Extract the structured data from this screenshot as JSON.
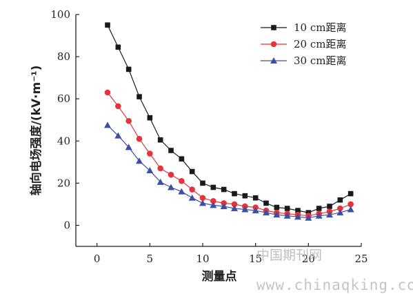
{
  "chart_data": {
    "type": "line",
    "title": "",
    "xlabel": "测量点",
    "ylabel": "轴向电场强度/(kV·m⁻¹)",
    "xlim": [
      -2,
      25
    ],
    "ylim": [
      -10,
      100
    ],
    "x_ticks": [
      0,
      5,
      10,
      15,
      20,
      25
    ],
    "y_ticks": [
      0,
      20,
      40,
      60,
      80,
      100
    ],
    "grid": false,
    "legend_position": "top-right",
    "x": [
      1,
      2,
      3,
      4,
      5,
      6,
      7,
      8,
      9,
      10,
      11,
      12,
      13,
      14,
      15,
      16,
      17,
      18,
      19,
      20,
      21,
      22,
      23,
      24
    ],
    "series": [
      {
        "name": "10 cm距离",
        "color": "#1a1a1a",
        "marker": "square",
        "values": [
          95,
          84.5,
          74,
          61,
          51,
          40.5,
          35.5,
          31.5,
          25.5,
          20,
          18,
          17,
          15,
          14,
          13,
          10.5,
          8.5,
          8,
          7,
          6,
          8,
          9,
          12,
          15
        ]
      },
      {
        "name": "20 cm距离",
        "color": "#e8333a",
        "marker": "circle",
        "values": [
          63,
          56.5,
          49.5,
          41,
          34,
          27,
          24,
          21,
          17,
          13,
          11.5,
          10.5,
          10,
          9,
          8.5,
          7,
          6,
          5.5,
          5,
          4.5,
          5.5,
          6.5,
          8,
          10
        ]
      },
      {
        "name": "30 cm距离",
        "color": "#3b4fa3",
        "marker": "triangle",
        "values": [
          47.5,
          42.5,
          37,
          30.5,
          26,
          20.5,
          18,
          16,
          13,
          10.5,
          9.5,
          9,
          8,
          7.5,
          7,
          6,
          5,
          4.5,
          4,
          3.5,
          4.5,
          5,
          6,
          7.5
        ]
      }
    ]
  },
  "watermark": {
    "cn": "中国期刊网",
    "url": "www.chinaqking.com"
  }
}
